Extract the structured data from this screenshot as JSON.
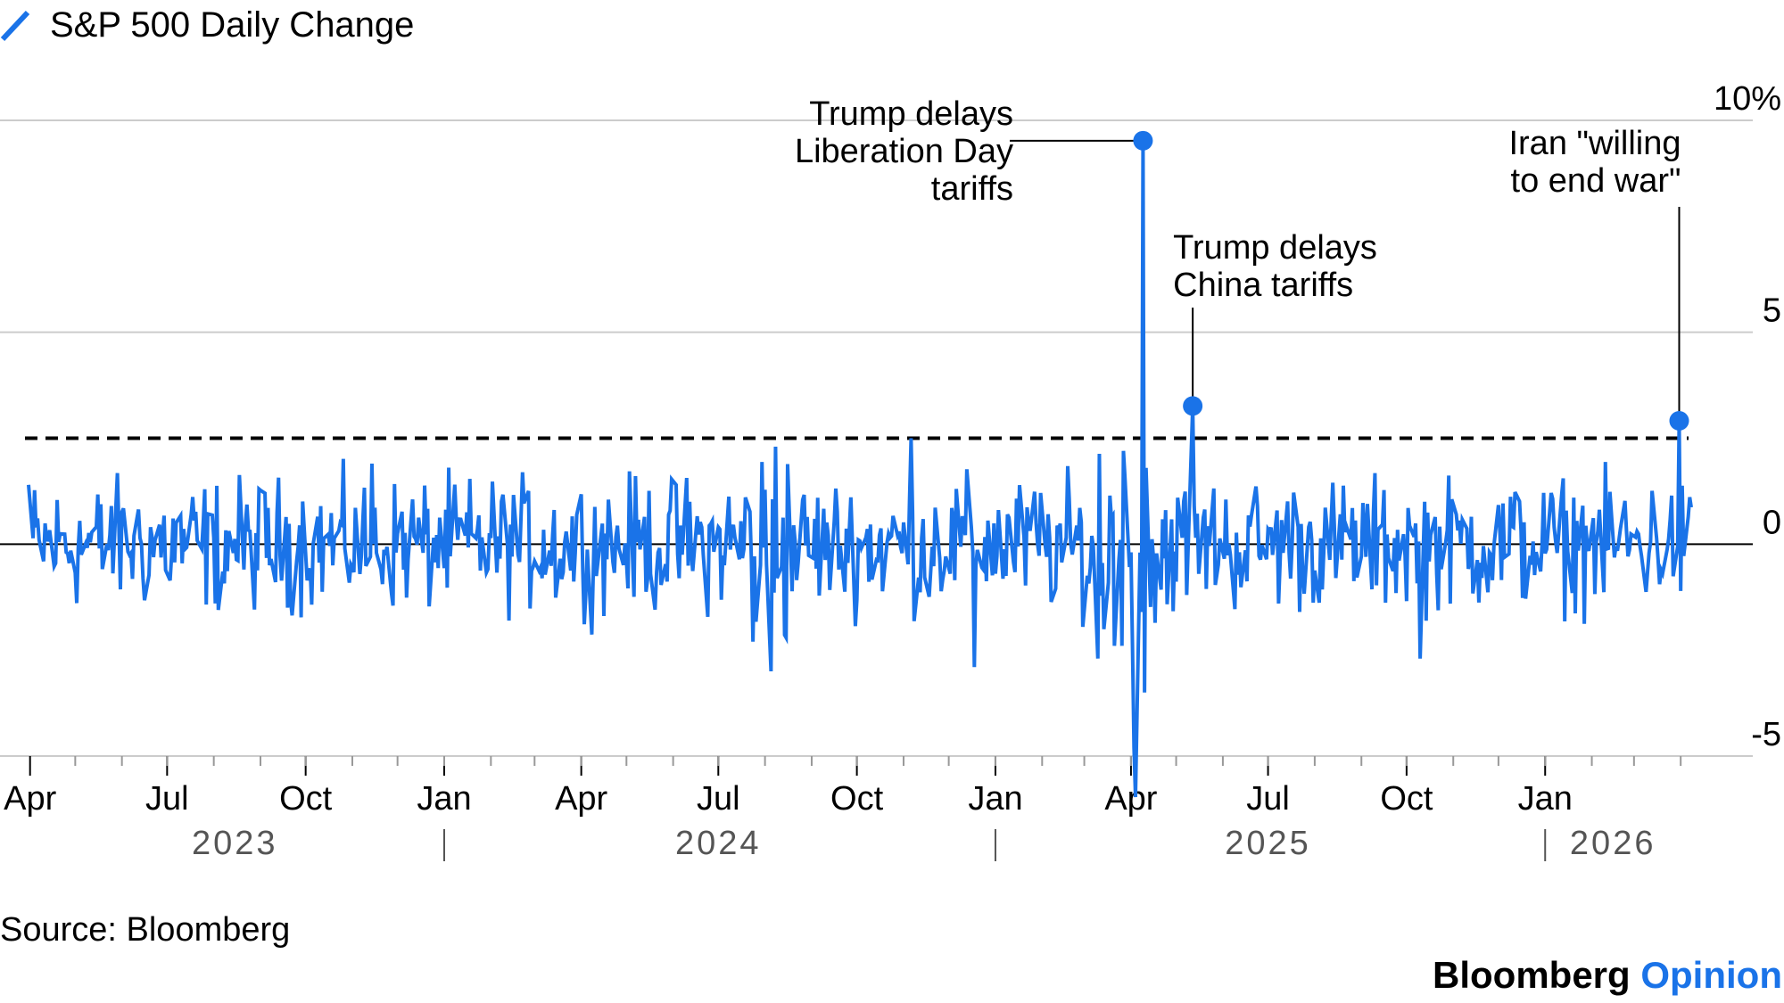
{
  "legend": {
    "label": "S&P 500 Daily Change"
  },
  "colors": {
    "series": "#1a73e8",
    "grid": "#cccccc",
    "zero": "#000000",
    "threshold": "#000000",
    "year_text": "#555555",
    "brand_accent": "#1a73e8"
  },
  "chart_data": {
    "type": "line",
    "x_start": "2023-03-31",
    "x_end": "2026-04-08",
    "ylim": [
      -5,
      10
    ],
    "y_ticks": [
      {
        "value": 10,
        "label": "10%"
      },
      {
        "value": 5,
        "label": "5"
      },
      {
        "value": 0,
        "label": "0"
      },
      {
        "value": -5,
        "label": "-5"
      }
    ],
    "grid": true,
    "threshold": 2.5,
    "month_ticks": [
      {
        "date": "2023-04-01",
        "label": "Apr"
      },
      {
        "date": "2023-07-01",
        "label": "Jul"
      },
      {
        "date": "2023-10-01",
        "label": "Oct"
      },
      {
        "date": "2024-01-01",
        "label": "Jan"
      },
      {
        "date": "2024-04-01",
        "label": "Apr"
      },
      {
        "date": "2024-07-01",
        "label": "Jul"
      },
      {
        "date": "2024-10-01",
        "label": "Oct"
      },
      {
        "date": "2025-01-01",
        "label": "Jan"
      },
      {
        "date": "2025-04-01",
        "label": "Apr"
      },
      {
        "date": "2025-07-01",
        "label": "Jul"
      },
      {
        "date": "2025-10-01",
        "label": "Oct"
      },
      {
        "date": "2026-01-01",
        "label": "Jan"
      }
    ],
    "year_labels": [
      {
        "date": "2023-08-15",
        "label": "2023"
      },
      {
        "date": "2024-07-01",
        "label": "2024"
      },
      {
        "date": "2025-07-01",
        "label": "2025"
      },
      {
        "date": "2026-02-15",
        "label": "2026"
      }
    ],
    "year_dividers": [
      "2024-01-01",
      "2025-01-01",
      "2026-01-01"
    ],
    "key_points": [
      {
        "date": "2023-03-31",
        "value": 1.4
      },
      {
        "date": "2023-05-25",
        "value": 0.9
      },
      {
        "date": "2023-08-02",
        "value": -1.4
      },
      {
        "date": "2023-11-14",
        "value": 1.9
      },
      {
        "date": "2024-04-04",
        "value": -1.2
      },
      {
        "date": "2024-07-24",
        "value": -2.3
      },
      {
        "date": "2024-08-05",
        "value": -3.0
      },
      {
        "date": "2024-08-08",
        "value": 2.3
      },
      {
        "date": "2024-11-06",
        "value": 2.5
      },
      {
        "date": "2024-12-18",
        "value": -2.9
      },
      {
        "date": "2025-03-10",
        "value": -2.7
      },
      {
        "date": "2025-04-03",
        "value": -4.8
      },
      {
        "date": "2025-04-04",
        "value": -5.97
      },
      {
        "date": "2025-04-07",
        "value": -0.2
      },
      {
        "date": "2025-04-08",
        "value": -1.6
      },
      {
        "date": "2025-04-09",
        "value": 9.52
      },
      {
        "date": "2025-04-10",
        "value": -3.5
      },
      {
        "date": "2025-04-11",
        "value": 1.8
      },
      {
        "date": "2025-05-12",
        "value": 3.26
      },
      {
        "date": "2025-10-10",
        "value": -2.7
      },
      {
        "date": "2026-03-31",
        "value": 2.91
      }
    ],
    "annotations": [
      {
        "date": "2025-04-09",
        "value": 9.52,
        "lines": [
          "Trump delays",
          "Liberation Day",
          "tariffs"
        ]
      },
      {
        "date": "2025-05-12",
        "value": 3.26,
        "lines": [
          "Trump delays",
          "China tariffs"
        ]
      },
      {
        "date": "2026-03-31",
        "value": 2.91,
        "lines": [
          "Iran \"willing",
          "to end war\""
        ]
      }
    ]
  },
  "footer": {
    "source": "Source: Bloomberg",
    "brand_primary": "Bloomberg",
    "brand_secondary": "Opinion"
  }
}
